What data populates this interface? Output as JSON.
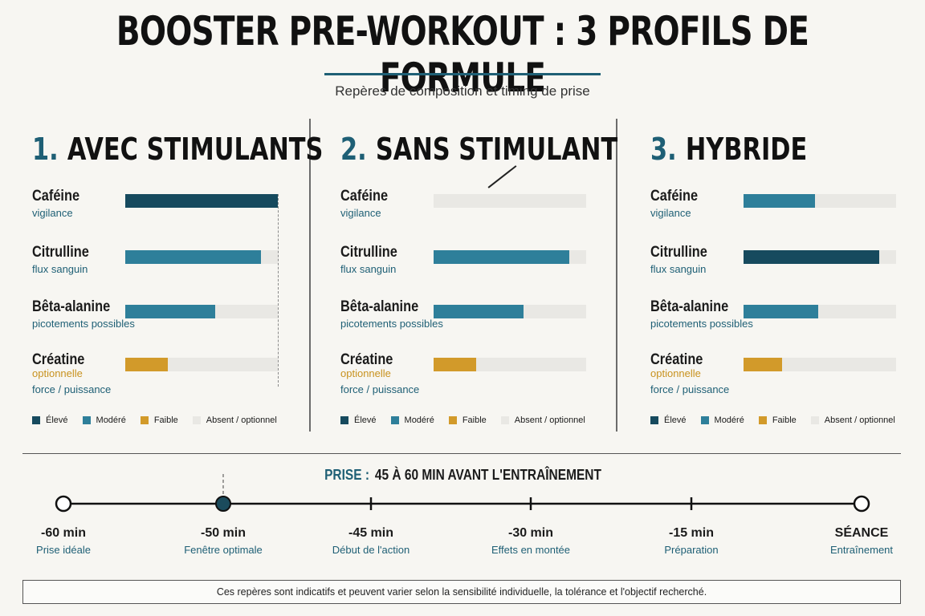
{
  "title": "BOOSTER PRE-WORKOUT : 3 PROFILS DE FORMULE",
  "subtitle": "Repères de composition et timing de prise",
  "colors": {
    "eleve": "#164a5e",
    "modere": "#2e7f9a",
    "faible": "#d29a2a",
    "absent": "#e9e8e4",
    "accent": "#1e5f75"
  },
  "legend": [
    {
      "label": "Élevé",
      "color": "#164a5e"
    },
    {
      "label": "Modéré",
      "color": "#2e7f9a"
    },
    {
      "label": "Faible",
      "color": "#d29a2a"
    },
    {
      "label": "Absent / optionnel",
      "color": "#e9e8e4"
    }
  ],
  "panels": [
    {
      "num": "1.",
      "title": "AVEC STIMULANTS",
      "rows": [
        {
          "label": "Caféine",
          "sub": "vigilance",
          "opt": "",
          "level": 1.0,
          "color": "#164a5e"
        },
        {
          "label": "Citrulline",
          "sub": "flux sanguin",
          "opt": "",
          "level": 0.89,
          "color": "#2e7f9a"
        },
        {
          "label": "Bêta-alanine",
          "sub": "picotements possibles",
          "opt": "",
          "level": 0.59,
          "color": "#2e7f9a"
        },
        {
          "label": "Créatine",
          "sub": "force / puissance",
          "opt": "optionnelle",
          "level": 0.28,
          "color": "#d29a2a"
        }
      ]
    },
    {
      "num": "2.",
      "title": "SANS STIMULANT",
      "rows": [
        {
          "label": "Caféine",
          "sub": "vigilance",
          "opt": "",
          "level": 0,
          "color": "#e9e8e4"
        },
        {
          "label": "Citrulline",
          "sub": "flux sanguin",
          "opt": "",
          "level": 0.89,
          "color": "#2e7f9a"
        },
        {
          "label": "Bêta-alanine",
          "sub": "picotements possibles",
          "opt": "",
          "level": 0.59,
          "color": "#2e7f9a"
        },
        {
          "label": "Créatine",
          "sub": "force / puissance",
          "opt": "optionnelle",
          "level": 0.28,
          "color": "#d29a2a"
        }
      ]
    },
    {
      "num": "3.",
      "title": "HYBRIDE",
      "rows": [
        {
          "label": "Caféine",
          "sub": "vigilance",
          "opt": "",
          "level": 0.47,
          "color": "#2e7f9a"
        },
        {
          "label": "Citrulline",
          "sub": "flux sanguin",
          "opt": "",
          "level": 0.89,
          "color": "#164a5e"
        },
        {
          "label": "Bêta-alanine",
          "sub": "picotements possibles",
          "opt": "",
          "level": 0.49,
          "color": "#2e7f9a"
        },
        {
          "label": "Créatine",
          "sub": "force / puissance",
          "opt": "optionnelle",
          "level": 0.25,
          "color": "#d29a2a"
        }
      ]
    }
  ],
  "prise": {
    "key": "PRISE :",
    "text": "45 À 60 MIN AVANT L'ENTRAÎNEMENT"
  },
  "timeline": [
    {
      "label": "-60 min",
      "sub": "Prise idéale",
      "marker": "open-circle"
    },
    {
      "label": "-50 min",
      "sub": "Fenêtre optimale",
      "marker": "filled-circle"
    },
    {
      "label": "-45 min",
      "sub": "Début de l'action",
      "marker": "tick"
    },
    {
      "label": "-30 min",
      "sub": "Effets en montée",
      "marker": "tick"
    },
    {
      "label": "-15 min",
      "sub": "Préparation",
      "marker": "tick"
    },
    {
      "label": "SÉANCE",
      "sub": "Entraînement",
      "marker": "open-circle"
    }
  ],
  "note": "Ces repères sont indicatifs et peuvent varier selon la sensibilité individuelle, la tolérance et l'objectif recherché.",
  "chart_data": [
    {
      "type": "bar",
      "title": "AVEC STIMULANTS",
      "categories": [
        "Caféine",
        "Citrulline",
        "Bêta-alanine",
        "Créatine"
      ],
      "values": [
        1.0,
        0.89,
        0.59,
        0.28
      ],
      "legend": [
        "Élevé",
        "Modéré",
        "Faible",
        "Absent / optionnel"
      ]
    },
    {
      "type": "bar",
      "title": "SANS STIMULANT",
      "categories": [
        "Caféine",
        "Citrulline",
        "Bêta-alanine",
        "Créatine"
      ],
      "values": [
        0,
        0.89,
        0.59,
        0.28
      ],
      "legend": [
        "Élevé",
        "Modéré",
        "Faible",
        "Absent / optionnel"
      ]
    },
    {
      "type": "bar",
      "title": "HYBRIDE",
      "categories": [
        "Caféine",
        "Citrulline",
        "Bêta-alanine",
        "Créatine"
      ],
      "values": [
        0.47,
        0.89,
        0.49,
        0.25
      ],
      "legend": [
        "Élevé",
        "Modéré",
        "Faible",
        "Absent / optionnel"
      ]
    }
  ]
}
